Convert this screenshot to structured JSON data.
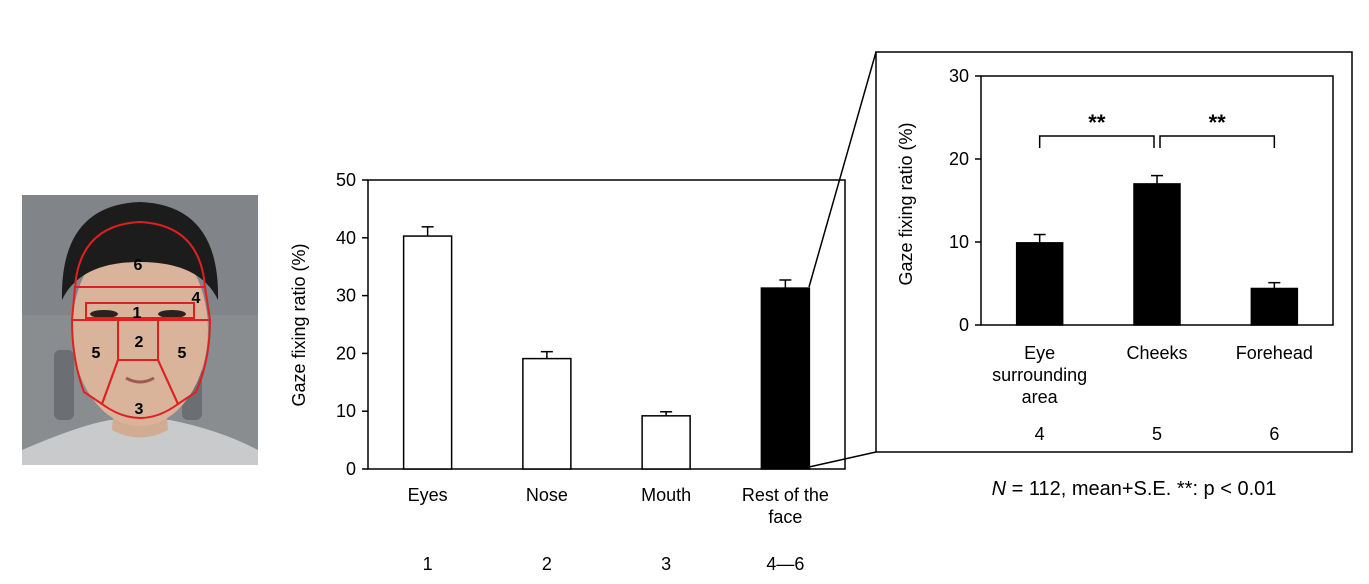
{
  "face_photo": {
    "zone_labels": [
      "1",
      "2",
      "3",
      "4",
      "5",
      "5",
      "6"
    ],
    "outline_color": "#e02020"
  },
  "chart_data": [
    {
      "type": "bar",
      "title": "",
      "ylabel": "Gaze fixing ratio (%)",
      "xlabel": "",
      "ylim": [
        0,
        50
      ],
      "yticks": [
        0,
        10,
        20,
        30,
        40,
        50
      ],
      "categories": [
        "Eyes",
        "Nose",
        "Mouth",
        "Rest of the face"
      ],
      "zone_numbers": [
        "1",
        "2",
        "3",
        "4—6"
      ],
      "values": [
        40.3,
        19.1,
        9.2,
        31.3
      ],
      "errors": [
        1.6,
        1.2,
        0.7,
        1.4
      ],
      "fills": [
        "#ffffff",
        "#ffffff",
        "#ffffff",
        "#000000"
      ]
    },
    {
      "type": "bar",
      "title": "",
      "ylabel": "Gaze fixing ratio (%)",
      "xlabel": "",
      "ylim": [
        0,
        30
      ],
      "yticks": [
        0,
        10,
        20,
        30
      ],
      "categories": [
        "Eye surrounding area",
        "Cheeks",
        "Forehead"
      ],
      "zone_numbers": [
        "4",
        "5",
        "6"
      ],
      "values": [
        9.9,
        17.0,
        4.4
      ],
      "errors": [
        1.0,
        1.0,
        0.7
      ],
      "fills": [
        "#000000",
        "#000000",
        "#000000"
      ],
      "significance": [
        {
          "from": "Eye surrounding area",
          "to": "Cheeks",
          "label": "**"
        },
        {
          "from": "Cheeks",
          "to": "Forehead",
          "label": "**"
        }
      ],
      "footnote": {
        "n_symbol": "N",
        "text": " = 112, mean+S.E. **: p < 0.01"
      }
    }
  ]
}
